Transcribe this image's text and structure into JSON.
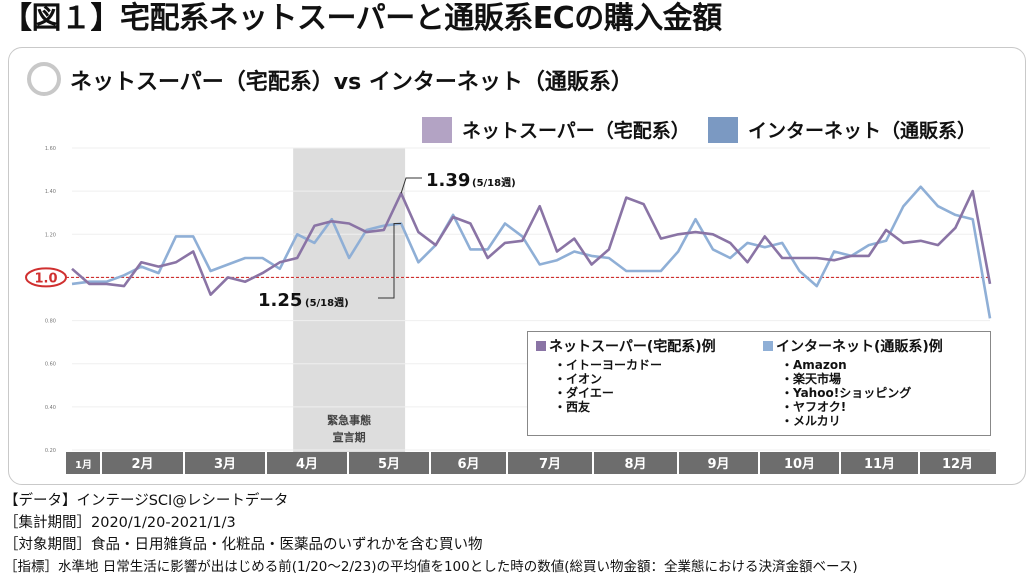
{
  "figure_title": "【図１】宅配系ネットスーパーと通販系ECの購入金額",
  "subtitle": "ネットスーパー（宅配系）vs インターネット（通販系）",
  "legend": [
    {
      "label": "ネットスーパー（宅配系）",
      "color": "#b3a3c4"
    },
    {
      "label": "インターネット（通販系）",
      "color": "#7b99c2"
    }
  ],
  "baseline_label": "1.0",
  "shade_label_line1": "緊急事態",
  "shade_label_line2": "宣言期",
  "annotations": [
    {
      "value": "1.39",
      "note": "(5/18週)"
    },
    {
      "value": "1.25",
      "note": "(5/18週)"
    }
  ],
  "examples": {
    "supermarket_heading": "ネットスーパー(宅配系)例",
    "supermarket_items": [
      "・イトーヨーカドー",
      "・イオン",
      "・ダイエー",
      "・西友"
    ],
    "internet_heading": "インターネット(通販系)例",
    "internet_items": [
      "・Amazon",
      "・楽天市場",
      "・Yahoo!ショッピング",
      "・ヤフオク!",
      "・メルカリ"
    ]
  },
  "footer": {
    "line1": "【データ】インテージSCI@レシートデータ",
    "line2": "［集計期間］2020/1/20-2021/1/3",
    "line3": "［対象期間］食品・日用雑貨品・化粧品・医薬品のいずれかを含む買い物",
    "line4": "［指標］水準地 日常生活に影響が出はじめる前(1/20～2/23)の平均値を100とした時の数値(総買い物金額：全業態における決済金額ベース)"
  },
  "colors": {
    "supermarket": "#8a74a5",
    "internet": "#8fafd6",
    "baseline": "#d03030",
    "shade": "#dddddd",
    "month_bar": "#6d6d6d"
  },
  "chart_data": {
    "type": "line",
    "ylim": [
      0.2,
      1.6
    ],
    "yticks": [
      "0.20",
      "0.40",
      "0.60",
      "0.80",
      "1.00",
      "1.20",
      "1.40",
      "1.60"
    ],
    "months": [
      "1月",
      "2月",
      "3月",
      "4月",
      "5月",
      "6月",
      "7月",
      "8月",
      "9月",
      "10月",
      "11月",
      "12月"
    ],
    "emergency_period_weeks": [
      13,
      19
    ],
    "series": [
      {
        "name": "ネットスーパー（宅配系）",
        "values": [
          1.04,
          0.97,
          0.97,
          0.96,
          1.07,
          1.05,
          1.07,
          1.12,
          0.92,
          1.0,
          0.98,
          1.02,
          1.07,
          1.09,
          1.24,
          1.26,
          1.25,
          1.21,
          1.22,
          1.39,
          1.21,
          1.15,
          1.28,
          1.25,
          1.09,
          1.16,
          1.17,
          1.33,
          1.12,
          1.18,
          1.06,
          1.13,
          1.37,
          1.34,
          1.18,
          1.2,
          1.21,
          1.2,
          1.16,
          1.07,
          1.19,
          1.09,
          1.09,
          1.09,
          1.08,
          1.1,
          1.1,
          1.22,
          1.16,
          1.17,
          1.15,
          1.23,
          1.4,
          0.97
        ]
      },
      {
        "name": "インターネット（通販系）",
        "values": [
          0.97,
          0.98,
          0.98,
          1.01,
          1.05,
          1.02,
          1.19,
          1.19,
          1.03,
          1.06,
          1.09,
          1.09,
          1.04,
          1.2,
          1.16,
          1.27,
          1.09,
          1.22,
          1.24,
          1.25,
          1.07,
          1.15,
          1.29,
          1.13,
          1.13,
          1.25,
          1.19,
          1.06,
          1.08,
          1.12,
          1.1,
          1.09,
          1.03,
          1.03,
          1.03,
          1.12,
          1.27,
          1.13,
          1.09,
          1.16,
          1.14,
          1.16,
          1.03,
          0.96,
          1.12,
          1.1,
          1.15,
          1.17,
          1.33,
          1.42,
          1.33,
          1.29,
          1.27,
          0.81
        ]
      }
    ]
  }
}
